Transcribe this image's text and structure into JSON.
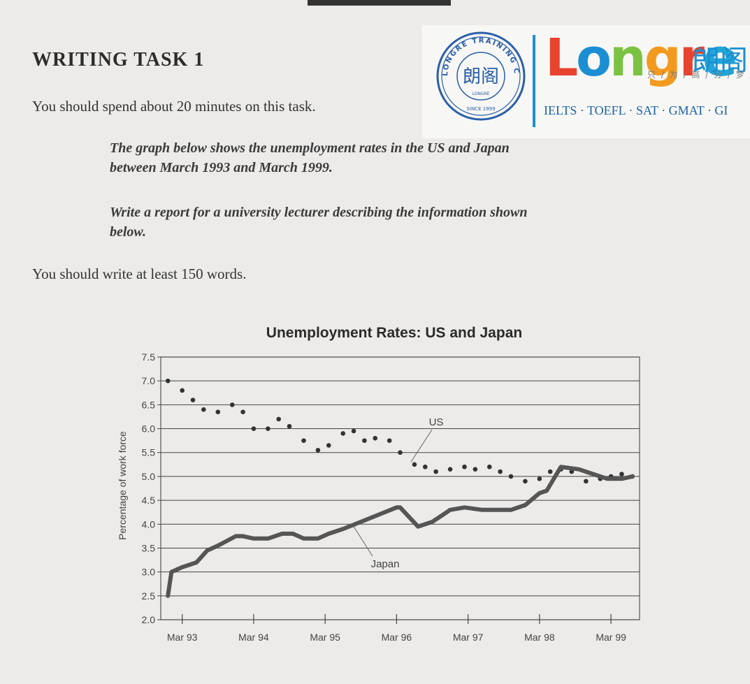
{
  "document": {
    "heading": "WRITING TASK 1",
    "time_instruction": "You should spend about 20 minutes on this task.",
    "task_description_line1": "The graph below shows the unemployment rates in the US and Japan",
    "task_description_line2": "between March 1993 and March 1999.",
    "report_instruction_line1": "Write a report for a university lecturer describing the information shown",
    "report_instruction_line2": "below.",
    "word_instruction": "You should write at least 150 words."
  },
  "logo": {
    "brand": "Longre",
    "chinese_name": "朗阁",
    "slogan": "只 / 为 / 高 / 分 / 梦 /",
    "tests": "IELTS · TOEFL · SAT · GMAT · GI",
    "seal_top_text": "LONGRE TRAINING CENTER",
    "seal_center_text": "朗阁",
    "seal_small_text": "LONGRE",
    "seal_since": "SINCE 1999",
    "colors": {
      "red": "#e8432e",
      "blue": "#1b8fd2",
      "green": "#7cc242",
      "orange": "#f29a1f",
      "divider": "#1b8fd2"
    }
  },
  "chart_data": {
    "type": "line",
    "title": "Unemployment Rates: US and Japan",
    "ylabel": "Percentage of work force",
    "xlabel": "",
    "ylim": [
      2.0,
      7.5
    ],
    "yticks": [
      "2.0",
      "2.5",
      "3.0",
      "3.5",
      "4.0",
      "4.5",
      "5.0",
      "5.5",
      "6.0",
      "6.5",
      "7.0",
      "7.5"
    ],
    "xticks": [
      "Mar 93",
      "Mar 94",
      "Mar 95",
      "Mar 96",
      "Mar 97",
      "Mar 98",
      "Mar 99"
    ],
    "xlim": [
      1992.7,
      1999.4
    ],
    "grid": "horizontal",
    "legend": "none",
    "series": [
      {
        "name": "US",
        "style": "dots",
        "x": [
          1992.8,
          1993.0,
          1993.15,
          1993.3,
          1993.5,
          1993.7,
          1993.85,
          1994.0,
          1994.2,
          1994.35,
          1994.5,
          1994.7,
          1994.9,
          1995.05,
          1995.25,
          1995.4,
          1995.55,
          1995.7,
          1995.9,
          1996.05,
          1996.25,
          1996.4,
          1996.55,
          1996.75,
          1996.95,
          1997.1,
          1997.3,
          1997.45,
          1997.6,
          1997.8,
          1998.0,
          1998.15,
          1998.3,
          1998.45,
          1998.65,
          1998.85,
          1999.0,
          1999.15,
          1999.3
        ],
        "values": [
          7.0,
          6.8,
          6.6,
          6.4,
          6.35,
          6.5,
          6.35,
          6.0,
          6.0,
          6.2,
          6.05,
          5.75,
          5.55,
          5.65,
          5.9,
          5.95,
          5.75,
          5.8,
          5.75,
          5.5,
          5.25,
          5.2,
          5.1,
          5.15,
          5.2,
          5.15,
          5.2,
          5.1,
          5.0,
          4.9,
          4.95,
          5.1,
          5.15,
          5.1,
          4.9,
          4.95,
          5.0,
          5.05,
          5.0
        ]
      },
      {
        "name": "Japan",
        "style": "line",
        "x": [
          1992.8,
          1992.85,
          1993.0,
          1993.2,
          1993.35,
          1993.5,
          1993.75,
          1993.85,
          1994.0,
          1994.2,
          1994.4,
          1994.55,
          1994.7,
          1994.9,
          1995.05,
          1995.25,
          1995.5,
          1995.75,
          1996.0,
          1996.05,
          1996.3,
          1996.5,
          1996.75,
          1996.95,
          1997.2,
          1997.4,
          1997.6,
          1997.8,
          1998.0,
          1998.1,
          1998.3,
          1998.55,
          1998.75,
          1998.95,
          1999.15,
          1999.3
        ],
        "values": [
          2.5,
          3.0,
          3.1,
          3.2,
          3.45,
          3.55,
          3.75,
          3.75,
          3.7,
          3.7,
          3.8,
          3.8,
          3.7,
          3.7,
          3.8,
          3.9,
          4.05,
          4.2,
          4.35,
          4.35,
          3.95,
          4.05,
          4.3,
          4.35,
          4.3,
          4.3,
          4.3,
          4.4,
          4.65,
          4.7,
          5.2,
          5.15,
          5.05,
          4.95,
          4.95,
          5.0
        ]
      }
    ],
    "annotations": [
      {
        "text": "US",
        "points_to_series": "US"
      },
      {
        "text": "Japan",
        "points_to_series": "Japan"
      }
    ]
  }
}
